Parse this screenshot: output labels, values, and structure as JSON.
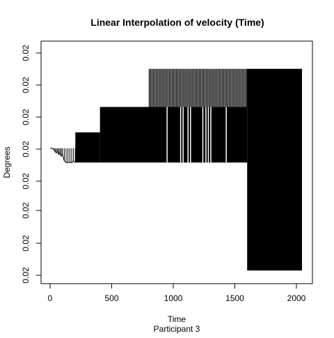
{
  "chart_data": {
    "type": "bar",
    "title": "Linear Interpolation of velocity (Time)",
    "xlabel": "Time",
    "subtitle": "Participant  3",
    "ylabel": "Degrees",
    "xlim": [
      -50,
      2075
    ],
    "x_ticks": [
      0,
      500,
      1000,
      1500,
      2000
    ],
    "y_tick_labels": [
      "0.02",
      "0.02",
      "0.02",
      "0.02",
      "0.02",
      "0.02",
      "0.02",
      "0.02"
    ],
    "grid": false,
    "legend": "none",
    "color": "#000000",
    "series": [
      {
        "values_note": "",
        "points": [
          {
            "x": 0,
            "y": 4
          },
          {
            "x": 20,
            "y": 4
          },
          {
            "x": 30,
            "y": 3.95
          },
          {
            "x": 40,
            "y": 3.9
          },
          {
            "x": 50,
            "y": 3.85
          },
          {
            "x": 60,
            "y": 3.9
          },
          {
            "x": 70,
            "y": 3.8
          },
          {
            "x": 80,
            "y": 3.85
          },
          {
            "x": 90,
            "y": 3.75
          },
          {
            "x": 100,
            "y": 3.8
          },
          {
            "x": 115,
            "y": 3.6
          },
          {
            "x": 130,
            "y": 3.55
          },
          {
            "x": 145,
            "y": 3.55
          },
          {
            "x": 160,
            "y": 3.55
          },
          {
            "x": 175,
            "y": 3.55
          },
          {
            "x": 190,
            "y": 3.6
          },
          {
            "x": 205,
            "y": 3.55
          }
        ]
      }
    ],
    "blocks": [
      {
        "x0": 205,
        "x1": 405,
        "y_top": 4.5,
        "y_bottom": 3.55
      },
      {
        "x0": 405,
        "x1": 805,
        "y_top": 5.3,
        "y_bottom": 3.55
      },
      {
        "x0": 805,
        "x1": 1600,
        "y_top": 5.3,
        "y_bottom": 3.55
      },
      {
        "x0": 1600,
        "x1": 2045,
        "y_top": 6.5,
        "y_bottom": 0.15
      }
    ],
    "hatch_regions": [
      {
        "x0": 805,
        "x1": 1600,
        "y_top": 6.5,
        "y_bottom": 5.3,
        "step": 11
      },
      {
        "x0": 950,
        "x1": 1440,
        "y_top": 5.3,
        "y_bottom": 3.55,
        "lines": [
          950,
          1060,
          1080,
          1120,
          1140,
          1240,
          1265,
          1285,
          1305,
          1430
        ]
      }
    ]
  }
}
